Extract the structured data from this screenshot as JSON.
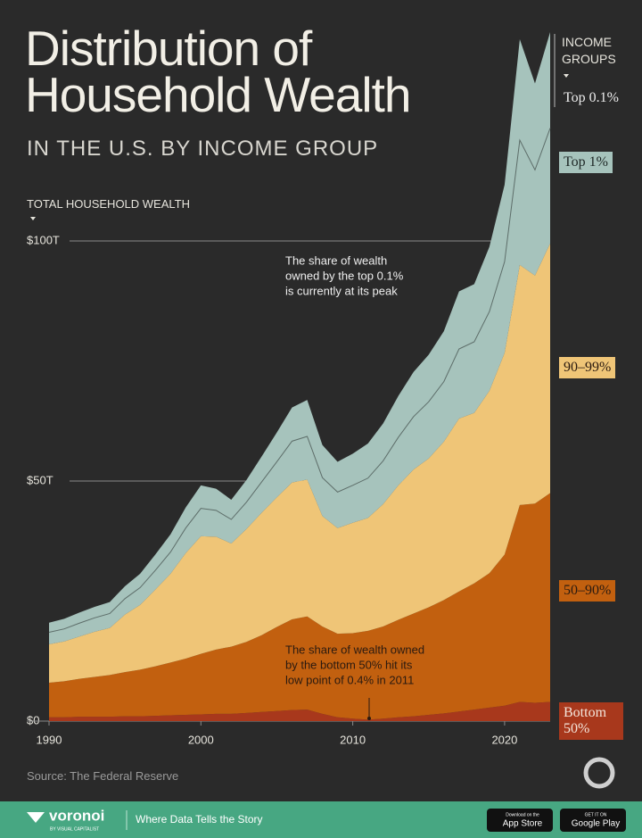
{
  "chart_data": {
    "type": "stacked-area",
    "title": "Distribution of Household Wealth",
    "subtitle": "IN THE U.S. BY INCOME GROUP",
    "y_label": "TOTAL HOUSEHOLD WEALTH",
    "legend_title": "INCOME GROUPS",
    "source": "Source: The Federal Reserve",
    "x": [
      1990,
      1991,
      1992,
      1993,
      1994,
      1995,
      1996,
      1997,
      1998,
      1999,
      2000,
      2001,
      2002,
      2003,
      2004,
      2005,
      2006,
      2007,
      2008,
      2009,
      2010,
      2011,
      2012,
      2013,
      2014,
      2015,
      2016,
      2017,
      2018,
      2019,
      2020,
      2021,
      2022,
      2023
    ],
    "xlim": [
      1990,
      2023
    ],
    "xticks": [
      1990,
      2000,
      2010,
      2020
    ],
    "ylim": [
      0,
      150
    ],
    "yticks": [
      {
        "value": 0,
        "label": "$0"
      },
      {
        "value": 50,
        "label": "$50T"
      },
      {
        "value": 100,
        "label": "$100T"
      }
    ],
    "series": [
      {
        "name": "Bottom 50%",
        "color": "#a8381c",
        "values": [
          0.8,
          0.8,
          0.9,
          0.9,
          0.9,
          1.0,
          1.0,
          1.1,
          1.2,
          1.3,
          1.4,
          1.5,
          1.5,
          1.7,
          1.9,
          2.1,
          2.3,
          2.4,
          1.5,
          0.8,
          0.5,
          0.3,
          0.5,
          0.8,
          1.0,
          1.3,
          1.6,
          2.0,
          2.4,
          2.8,
          3.2,
          4.0,
          3.8,
          4.0
        ]
      },
      {
        "name": "50–90%",
        "color": "#c2600f",
        "values": [
          7.2,
          7.5,
          7.9,
          8.3,
          8.7,
          9.2,
          9.7,
          10.3,
          11.0,
          11.7,
          12.6,
          13.4,
          14.0,
          14.8,
          16.0,
          17.5,
          18.9,
          19.4,
          18.2,
          17.4,
          17.8,
          18.5,
          19.2,
          20.3,
          21.4,
          22.4,
          23.6,
          25.0,
          26.3,
          28.0,
          31.5,
          41.0,
          41.5,
          43.5
        ]
      },
      {
        "name": "90–99%",
        "color": "#efc577",
        "values": [
          8.0,
          8.3,
          8.8,
          9.4,
          9.8,
          12.0,
          13.5,
          16.0,
          18.5,
          22.0,
          24.5,
          23.5,
          21.5,
          23.5,
          25.5,
          27.0,
          28.5,
          28.5,
          23.0,
          22.0,
          23.0,
          23.5,
          25.5,
          28.0,
          30.0,
          31.0,
          33.0,
          36.0,
          35.5,
          38.0,
          42.0,
          50.0,
          47.5,
          52.0
        ]
      },
      {
        "name": "Top 1%",
        "color": "#a6c3bc",
        "values": [
          2.5,
          2.6,
          2.8,
          2.9,
          3.0,
          3.3,
          3.6,
          4.0,
          4.5,
          5.2,
          5.8,
          5.5,
          5.0,
          5.6,
          6.4,
          7.4,
          8.6,
          9.0,
          8.0,
          7.5,
          7.8,
          8.3,
          9.0,
          10.0,
          11.0,
          11.8,
          12.5,
          14.5,
          14.8,
          16.5,
          19.0,
          26.0,
          22.0,
          24.0
        ]
      },
      {
        "name": "Top 0.1%",
        "color": "#a6c3bc",
        "values": [
          2.0,
          2.1,
          2.2,
          2.3,
          2.4,
          2.6,
          2.9,
          3.3,
          3.7,
          4.3,
          4.8,
          4.5,
          4.1,
          4.6,
          5.3,
          6.1,
          7.0,
          7.6,
          6.8,
          6.3,
          6.6,
          7.2,
          7.8,
          8.6,
          9.3,
          9.8,
          10.5,
          12.0,
          12.0,
          13.5,
          16.0,
          21.0,
          18.0,
          20.0
        ]
      }
    ],
    "annotations": [
      [
        "The share of wealth",
        "owned by the top 0.1%",
        "is currently at its peak"
      ],
      [
        "The share of wealth owned",
        "by the bottom 50% hit its",
        "low point of 0.4% in 2011"
      ]
    ]
  },
  "footer": {
    "brand": "voronoi",
    "brand_sub": "BY VISUAL CAPITALIST",
    "tagline": "Where Data Tells the Story",
    "app_store_small": "Download on the",
    "app_store": "App Store",
    "google_small": "GET IT ON",
    "google": "Google Play"
  }
}
